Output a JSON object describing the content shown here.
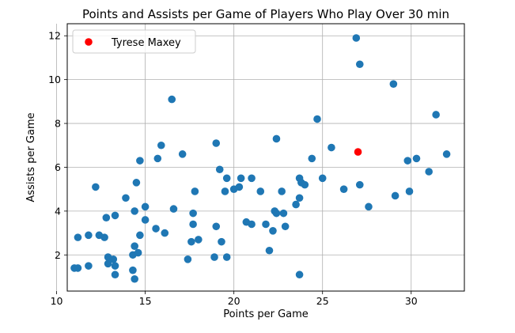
{
  "chart_data": {
    "type": "scatter",
    "title": "Points and Assists per Game of Players Who Play Over 30 min",
    "xlabel": "Points per Game",
    "ylabel": "Assists per Game",
    "xlim": [
      10.6,
      33.0
    ],
    "ylim": [
      0.35,
      12.55
    ],
    "xticks": [
      10,
      15,
      20,
      25,
      30
    ],
    "yticks": [
      2,
      4,
      6,
      8,
      10,
      12
    ],
    "grid": true,
    "legend_placement": "top-left",
    "series": [
      {
        "color": "#1f77b4",
        "points": [
          [
            11.0,
            1.4
          ],
          [
            11.2,
            1.4
          ],
          [
            11.2,
            2.8
          ],
          [
            11.8,
            1.5
          ],
          [
            11.8,
            2.9
          ],
          [
            12.2,
            5.1
          ],
          [
            12.4,
            2.9
          ],
          [
            12.7,
            2.8
          ],
          [
            12.8,
            3.7
          ],
          [
            12.9,
            1.9
          ],
          [
            12.9,
            1.6
          ],
          [
            13.2,
            1.8
          ],
          [
            13.3,
            1.5
          ],
          [
            13.3,
            1.1
          ],
          [
            13.3,
            3.8
          ],
          [
            13.9,
            4.6
          ],
          [
            14.3,
            1.3
          ],
          [
            14.4,
            0.9
          ],
          [
            14.3,
            2.0
          ],
          [
            14.4,
            2.4
          ],
          [
            14.4,
            4.0
          ],
          [
            14.5,
            5.3
          ],
          [
            14.6,
            2.1
          ],
          [
            14.7,
            2.9
          ],
          [
            14.7,
            6.3
          ],
          [
            15.0,
            3.6
          ],
          [
            15.0,
            4.2
          ],
          [
            15.6,
            3.2
          ],
          [
            15.7,
            6.4
          ],
          [
            15.9,
            7.0
          ],
          [
            16.1,
            3.0
          ],
          [
            16.5,
            9.1
          ],
          [
            16.6,
            4.1
          ],
          [
            17.1,
            6.6
          ],
          [
            17.4,
            1.8
          ],
          [
            17.6,
            2.6
          ],
          [
            17.7,
            3.9
          ],
          [
            17.7,
            3.4
          ],
          [
            17.8,
            4.9
          ],
          [
            18.0,
            2.7
          ],
          [
            18.9,
            1.9
          ],
          [
            19.0,
            3.3
          ],
          [
            19.0,
            7.1
          ],
          [
            19.2,
            5.9
          ],
          [
            19.3,
            2.6
          ],
          [
            19.5,
            4.9
          ],
          [
            19.6,
            5.5
          ],
          [
            19.6,
            1.9
          ],
          [
            20.0,
            5.0
          ],
          [
            20.3,
            5.1
          ],
          [
            20.4,
            5.5
          ],
          [
            20.7,
            3.5
          ],
          [
            21.0,
            3.4
          ],
          [
            21.0,
            5.5
          ],
          [
            21.5,
            4.9
          ],
          [
            21.8,
            3.4
          ],
          [
            22.0,
            2.2
          ],
          [
            22.2,
            3.1
          ],
          [
            22.3,
            4.0
          ],
          [
            22.4,
            7.3
          ],
          [
            22.4,
            3.9
          ],
          [
            22.7,
            4.9
          ],
          [
            22.8,
            3.9
          ],
          [
            22.9,
            3.3
          ],
          [
            23.5,
            4.3
          ],
          [
            23.7,
            5.5
          ],
          [
            23.7,
            4.6
          ],
          [
            23.7,
            1.1
          ],
          [
            23.8,
            5.3
          ],
          [
            24.0,
            5.2
          ],
          [
            24.4,
            6.4
          ],
          [
            24.7,
            8.2
          ],
          [
            25.0,
            5.5
          ],
          [
            25.5,
            6.9
          ],
          [
            26.2,
            5.0
          ],
          [
            26.9,
            11.9
          ],
          [
            27.1,
            10.7
          ],
          [
            27.1,
            5.2
          ],
          [
            27.6,
            4.2
          ],
          [
            29.0,
            9.8
          ],
          [
            29.1,
            4.7
          ],
          [
            29.8,
            6.3
          ],
          [
            29.9,
            4.9
          ],
          [
            30.3,
            6.4
          ],
          [
            31.0,
            5.8
          ],
          [
            31.4,
            8.4
          ],
          [
            32.0,
            6.6
          ]
        ]
      },
      {
        "name": "Tyrese Maxey",
        "color": "#ff0000",
        "points": [
          [
            27.0,
            6.7
          ]
        ]
      }
    ]
  }
}
